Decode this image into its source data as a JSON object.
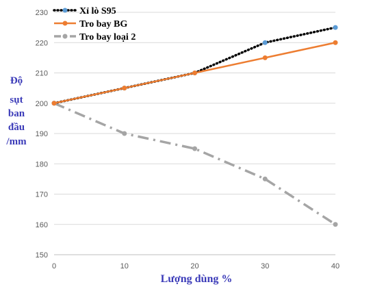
{
  "chart_data": {
    "type": "line",
    "x": [
      0,
      10,
      20,
      30,
      40
    ],
    "xticks": [
      "0",
      "10",
      "20",
      "30",
      "40"
    ],
    "xlim": [
      0,
      40
    ],
    "ylim": [
      150,
      230
    ],
    "yticks": [
      "150",
      "160",
      "170",
      "180",
      "190",
      "200",
      "210",
      "220",
      "230"
    ],
    "xlabel": "Lượng dùng %",
    "ylabel_lines": [
      "Độ",
      "sụt",
      "ban",
      "đầu",
      "/mm"
    ],
    "grid": "horizontal",
    "legend_position": "top-left",
    "series": [
      {
        "name": "Xỉ lò S95",
        "values": [
          200,
          205,
          210,
          220,
          225
        ],
        "line_color": "#000000",
        "marker_color": "#5b9bd5",
        "style": "dotted"
      },
      {
        "name": "Tro bay BG",
        "values": [
          200,
          205,
          210,
          215,
          220
        ],
        "line_color": "#ed7d31",
        "marker_color": "#ed7d31",
        "style": "solid"
      },
      {
        "name": "Tro bay loại 2",
        "values": [
          200,
          190,
          185,
          175,
          160
        ],
        "line_color": "#a5a5a5",
        "marker_color": "#a5a5a5",
        "style": "dashdot"
      }
    ]
  }
}
